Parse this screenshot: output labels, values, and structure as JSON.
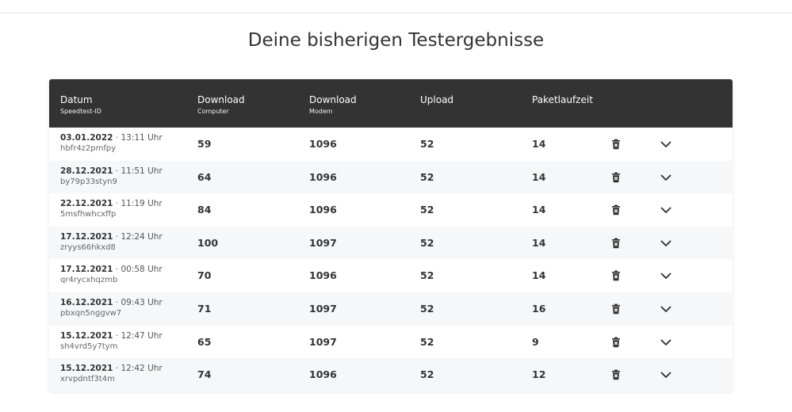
{
  "title": "Deine bisherigen Testergebnisse",
  "columns": {
    "date": {
      "main": "Datum",
      "sub": "Speedtest-ID"
    },
    "download_computer": {
      "main": "Download",
      "sub": "Computer"
    },
    "download_modem": {
      "main": "Download",
      "sub": "Modem"
    },
    "upload": {
      "main": "Upload"
    },
    "latency": {
      "main": "Paketlaufzeit"
    }
  },
  "date_separator": "·",
  "rows": [
    {
      "date": "03.01.2022",
      "time": "13:11 Uhr",
      "id": "hbfr4z2pmfpy",
      "download_computer": "59",
      "download_modem": "1096",
      "upload": "52",
      "latency": "14"
    },
    {
      "date": "28.12.2021",
      "time": "11:51 Uhr",
      "id": "by79p33styn9",
      "download_computer": "64",
      "download_modem": "1096",
      "upload": "52",
      "latency": "14"
    },
    {
      "date": "22.12.2021",
      "time": "11:19 Uhr",
      "id": "5msfhwhcxffp",
      "download_computer": "84",
      "download_modem": "1096",
      "upload": "52",
      "latency": "14"
    },
    {
      "date": "17.12.2021",
      "time": "12:24 Uhr",
      "id": "zryys66hkxd8",
      "download_computer": "100",
      "download_modem": "1097",
      "upload": "52",
      "latency": "14"
    },
    {
      "date": "17.12.2021",
      "time": "00:58 Uhr",
      "id": "qr4rycxhqzmb",
      "download_computer": "70",
      "download_modem": "1096",
      "upload": "52",
      "latency": "14"
    },
    {
      "date": "16.12.2021",
      "time": "09:43 Uhr",
      "id": "pbxqn5nggvw7",
      "download_computer": "71",
      "download_modem": "1097",
      "upload": "52",
      "latency": "16"
    },
    {
      "date": "15.12.2021",
      "time": "12:47 Uhr",
      "id": "sh4vrd5y7tym",
      "download_computer": "65",
      "download_modem": "1097",
      "upload": "52",
      "latency": "9"
    },
    {
      "date": "15.12.2021",
      "time": "12:42 Uhr",
      "id": "xrvpdntf3t4m",
      "download_computer": "74",
      "download_modem": "1096",
      "upload": "52",
      "latency": "12"
    }
  ],
  "icons": {
    "delete": "trash-icon",
    "expand": "chevron-down-icon"
  },
  "colors": {
    "header_bg": "#333333",
    "row_alt_bg": "#f5f7f9",
    "text": "#333333"
  }
}
